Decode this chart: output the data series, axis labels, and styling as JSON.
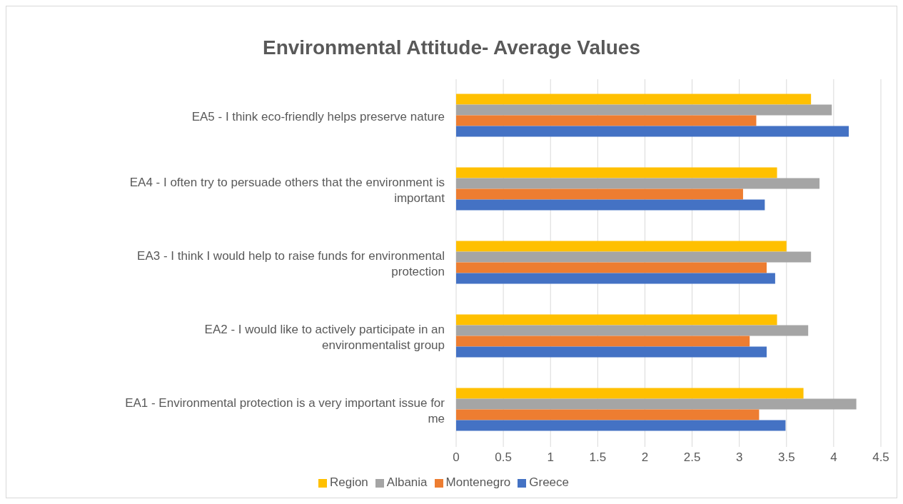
{
  "chart_data": {
    "type": "bar",
    "orientation": "horizontal",
    "title": "Environmental Attitude- Average Values",
    "categories": [
      "EA5 - I think eco-friendly helps preserve nature",
      "EA4 - I often try to persuade others that the environment is important",
      "EA3 - I think I would help to raise funds for environmental protection",
      "EA2 - I would like to actively participate in an environmentalist group",
      "EA1 - Environmental protection is a very important issue for me"
    ],
    "series": [
      {
        "name": "Region",
        "color": "#ffc000",
        "values": [
          3.76,
          3.4,
          3.5,
          3.4,
          3.68
        ]
      },
      {
        "name": "Albania",
        "color": "#a5a5a5",
        "values": [
          3.98,
          3.85,
          3.76,
          3.73,
          4.24
        ]
      },
      {
        "name": "Montenegro",
        "color": "#ed7d31",
        "values": [
          3.18,
          3.04,
          3.29,
          3.11,
          3.21
        ]
      },
      {
        "name": "Greece",
        "color": "#4472c4",
        "values": [
          4.16,
          3.27,
          3.38,
          3.29,
          3.49
        ]
      }
    ],
    "xlim": [
      0,
      4.5
    ],
    "xticks": [
      0,
      0.5,
      1,
      1.5,
      2,
      2.5,
      3,
      3.5,
      4,
      4.5
    ],
    "grid": "x",
    "legend": "bottom"
  }
}
